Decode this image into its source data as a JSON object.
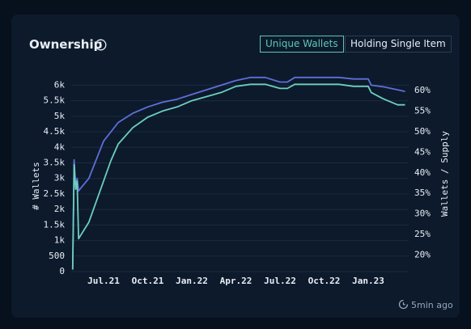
{
  "title": "Ownership",
  "toggles": [
    "Unique Wallets",
    "Holding Single Item"
  ],
  "updated": "5min ago",
  "chart_data": {
    "type": "line",
    "y_label": "# Wallets",
    "y2_label": "Wallets / Supply",
    "x": [
      3.9,
      4.0,
      4.1,
      4.2,
      4.3,
      5.0,
      5.5,
      6.0,
      6.5,
      7.0,
      8.0,
      9.0,
      10.0,
      11.0,
      12.0,
      13.0,
      14.0,
      15.0,
      16.0,
      17.0,
      18.0,
      18.5,
      19.0,
      20.0,
      21.0,
      22.0,
      23.0,
      24.0,
      24.2,
      25.0,
      26.0,
      26.5
    ],
    "xlim": [
      3.8,
      26.75
    ],
    "xticks": [
      {
        "value": 6,
        "label": "Jul.21"
      },
      {
        "value": 9,
        "label": "Oct.21"
      },
      {
        "value": 12,
        "label": "Jan.22"
      },
      {
        "value": 15,
        "label": "Apr.22"
      },
      {
        "value": 18,
        "label": "Jul.22"
      },
      {
        "value": 21,
        "label": "Oct.22"
      },
      {
        "value": 24,
        "label": "Jan.23"
      }
    ],
    "ylim": [
      0,
      6400
    ],
    "yticks": [
      0,
      500,
      {
        "value": 1000,
        "label": "1k"
      },
      {
        "value": 1500,
        "label": "1.5k"
      },
      {
        "value": 2000,
        "label": "2k"
      },
      {
        "value": 2500,
        "label": "2.5k"
      },
      {
        "value": 3000,
        "label": "3k"
      },
      {
        "value": 3500,
        "label": "3.5k"
      },
      {
        "value": 4000,
        "label": "4k"
      },
      {
        "value": 4500,
        "label": "4.5k"
      },
      {
        "value": 5000,
        "label": "5k"
      },
      {
        "value": 5500,
        "label": "5.5k"
      },
      {
        "value": 6000,
        "label": "6k"
      }
    ],
    "y2lim": [
      16,
      64.3
    ],
    "y2ticks": [
      {
        "value": 20,
        "label": "20%"
      },
      {
        "value": 25,
        "label": "25%"
      },
      {
        "value": 30,
        "label": "30%"
      },
      {
        "value": 35,
        "label": "35%"
      },
      {
        "value": 40,
        "label": "40%"
      },
      {
        "value": 45,
        "label": "45%"
      },
      {
        "value": 50,
        "label": "50%"
      },
      {
        "value": 55,
        "label": "55%"
      },
      {
        "value": 60,
        "label": "60%"
      }
    ],
    "grid": true,
    "series": [
      {
        "color": "#5f6fd8",
        "axis": "y",
        "values": [
          100,
          3600,
          2700,
          3000,
          2600,
          3000,
          3600,
          4200,
          4500,
          4800,
          5100,
          5300,
          5450,
          5550,
          5700,
          5850,
          6000,
          6150,
          6250,
          6250,
          6100,
          6100,
          6250,
          6250,
          6250,
          6250,
          6200,
          6200,
          6000,
          5950,
          5850,
          5800
        ]
      },
      {
        "color": "#6ccfbf",
        "axis": "y2",
        "values": [
          16.5,
          42,
          36,
          38,
          24,
          28,
          33,
          38,
          43,
          47,
          51,
          53.5,
          55,
          56,
          57.5,
          58.5,
          59.5,
          61,
          61.5,
          61.5,
          60.5,
          60.5,
          61.5,
          61.5,
          61.5,
          61.5,
          61,
          61,
          59.5,
          58,
          56.5,
          56.5
        ]
      }
    ]
  }
}
